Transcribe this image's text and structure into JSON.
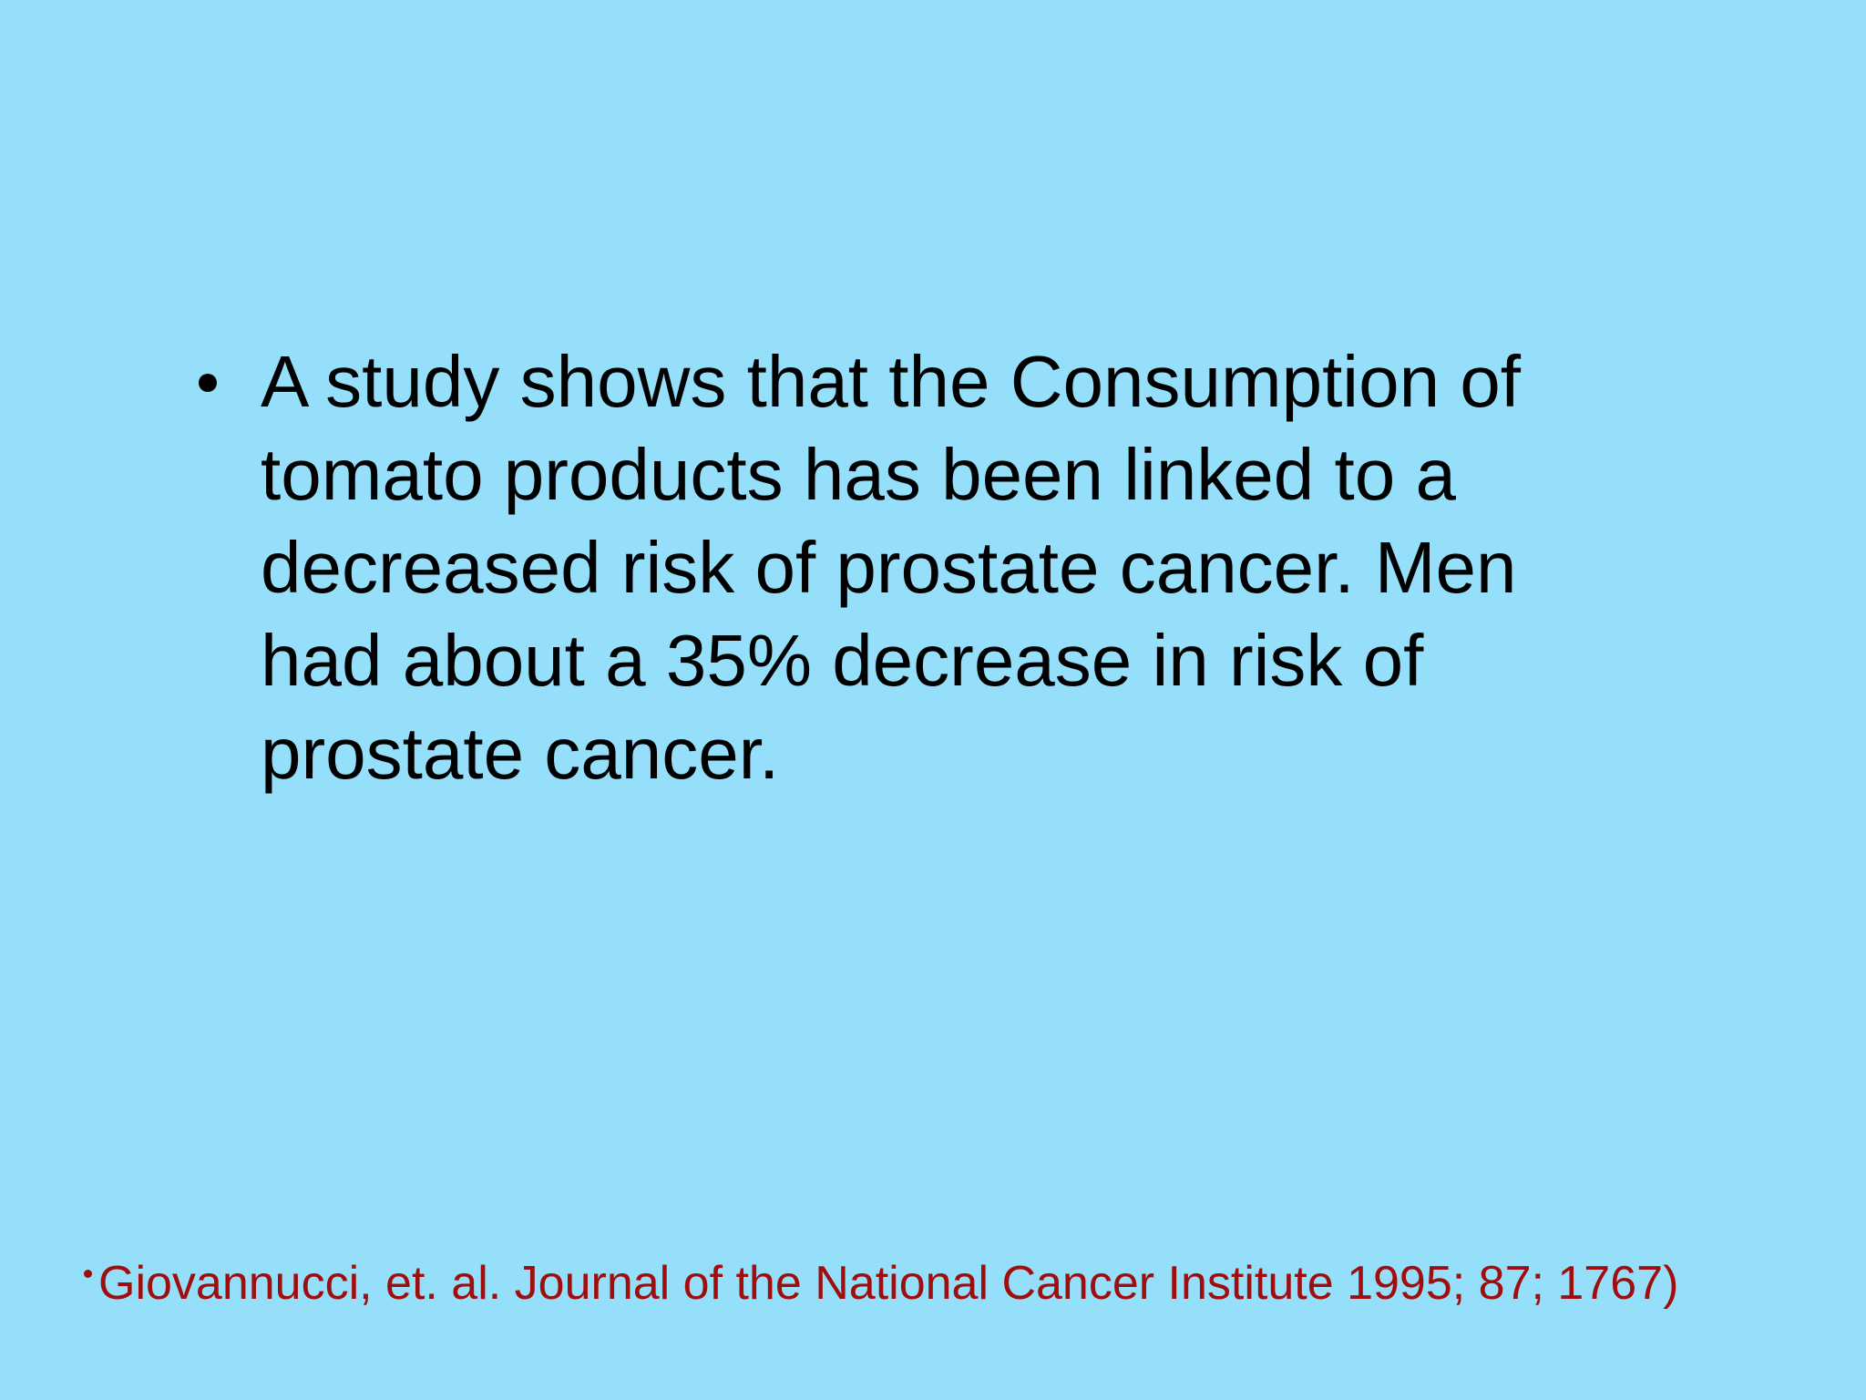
{
  "slide": {
    "bullet": {
      "lines": [
        "A study shows that the Consumption of",
        "tomato products has been linked to a",
        "decreased risk of prostate cancer. Men",
        "had about a 35% decrease in risk of",
        "prostate cancer."
      ]
    },
    "citation": "Giovannucci, et. al. Journal of the National Cancer Institute 1995; 87; 1767)"
  }
}
